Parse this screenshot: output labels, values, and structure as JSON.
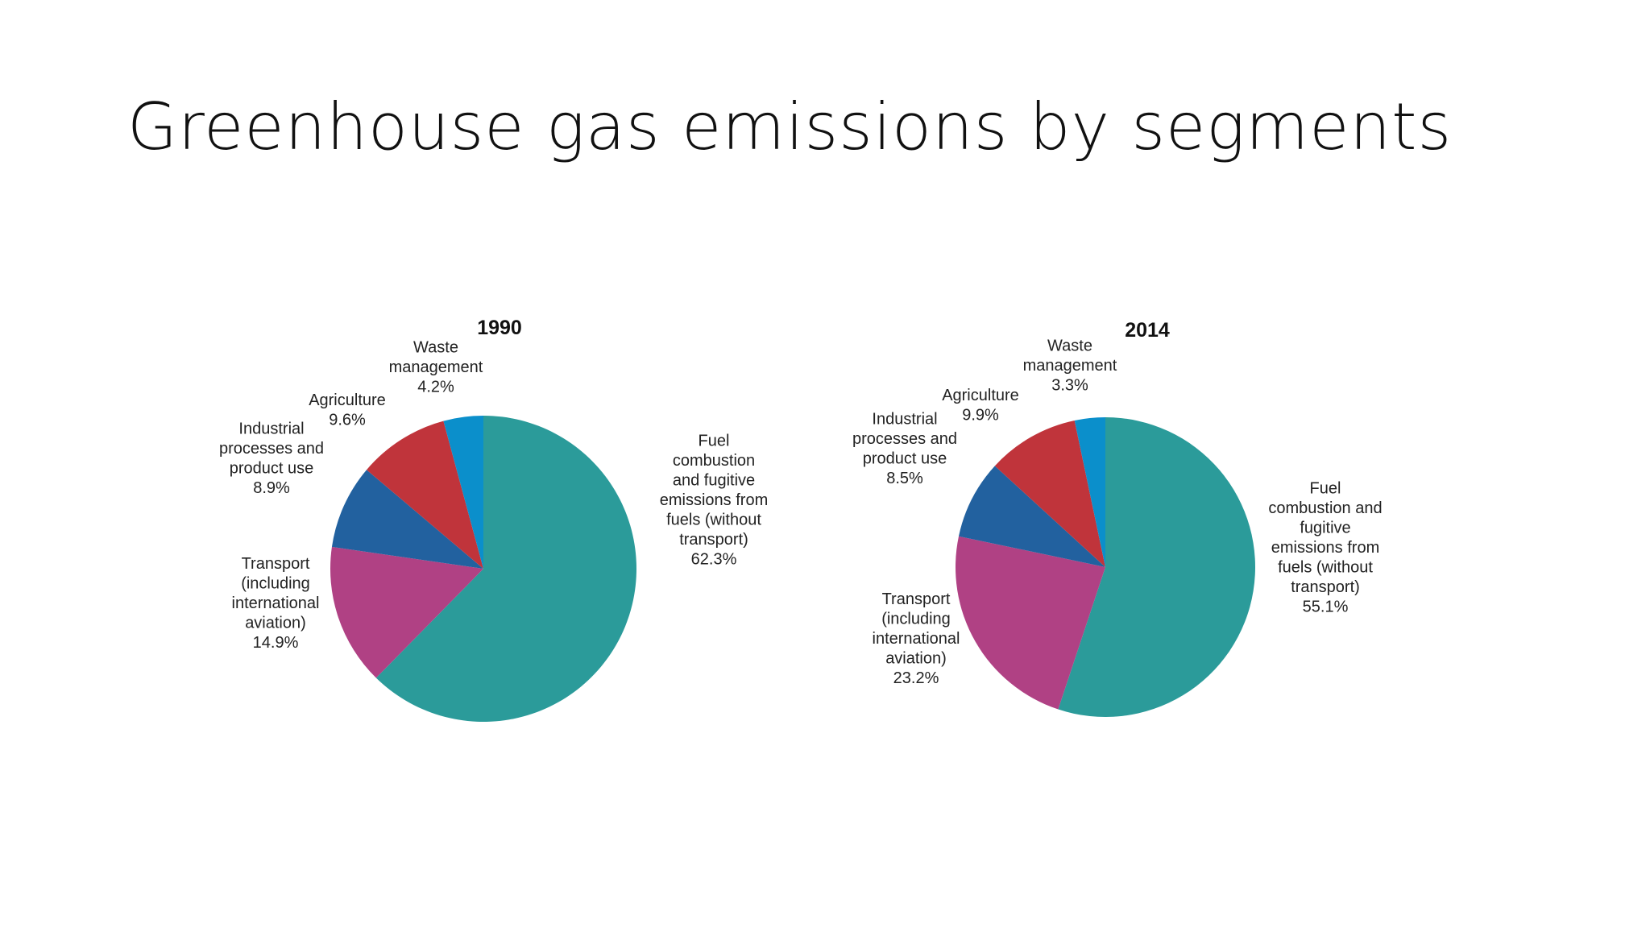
{
  "slide": {
    "title": "Greenhouse gas emissions by segments"
  },
  "chart_data": [
    {
      "type": "pie",
      "title": "1990",
      "slices": [
        {
          "name": "Fuel combustion and fugitive emissions from fuels (without transport)",
          "label_lines": [
            "Fuel",
            "combustion",
            "and fugitive",
            "emissions from",
            "fuels (without",
            "transport)",
            "62.3%"
          ],
          "value": 62.3,
          "color": "#2b9b9a"
        },
        {
          "name": "Transport (including international aviation)",
          "label_lines": [
            "Transport",
            "(including",
            "international",
            "aviation)",
            "14.9%"
          ],
          "value": 14.9,
          "color": "#b04184"
        },
        {
          "name": "Industrial processes and product use",
          "label_lines": [
            "Industrial",
            "processes and",
            "product use",
            "8.9%"
          ],
          "value": 8.9,
          "color": "#22619f"
        },
        {
          "name": "Agriculture",
          "label_lines": [
            "Agriculture",
            "9.6%"
          ],
          "value": 9.6,
          "color": "#c0343b"
        },
        {
          "name": "Waste management",
          "label_lines": [
            "Waste",
            "management",
            "4.2%"
          ],
          "value": 4.2,
          "color": "#0b8fcb"
        }
      ]
    },
    {
      "type": "pie",
      "title": "2014",
      "slices": [
        {
          "name": "Fuel combustion and fugitive emissions from fuels (without transport)",
          "label_lines": [
            "Fuel",
            "combustion and",
            "fugitive",
            "emissions from",
            "fuels (without",
            "transport)",
            "55.1%"
          ],
          "value": 55.1,
          "color": "#2b9b9a"
        },
        {
          "name": "Transport (including international aviation)",
          "label_lines": [
            "Transport",
            "(including",
            "international",
            "aviation)",
            "23.2%"
          ],
          "value": 23.2,
          "color": "#b04184"
        },
        {
          "name": "Industrial processes and product use",
          "label_lines": [
            "Industrial",
            "processes and",
            "product use",
            "8.5%"
          ],
          "value": 8.5,
          "color": "#22619f"
        },
        {
          "name": "Agriculture",
          "label_lines": [
            "Agriculture",
            "9.9%"
          ],
          "value": 9.9,
          "color": "#c0343b"
        },
        {
          "name": "Waste management",
          "label_lines": [
            "Waste",
            "management",
            "3.3%"
          ],
          "value": 3.3,
          "color": "#0b8fcb"
        }
      ]
    }
  ]
}
